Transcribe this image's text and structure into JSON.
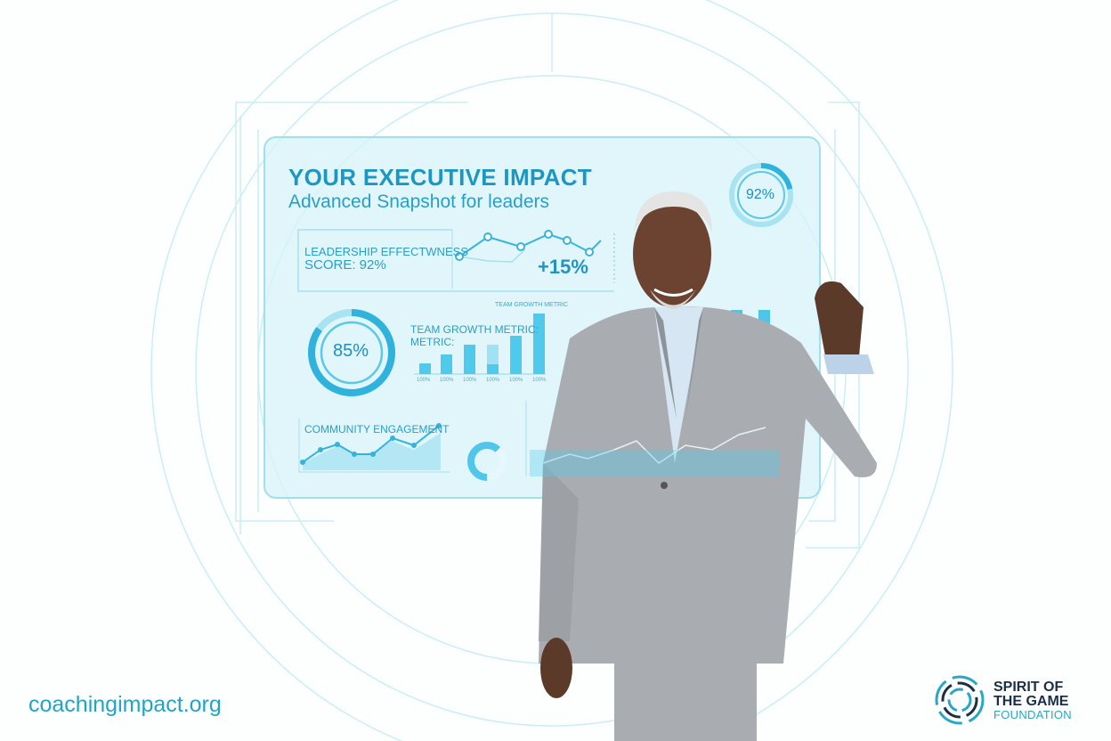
{
  "dashboard": {
    "title": "YOUR EXECUTIVE IMPACT",
    "subtitle": "Advanced Snapshot for leaders",
    "leadership_label": "LEADERSHIP EFFECTWNESS",
    "leadership_score": "SCORE: 92%",
    "trend_change": "+15%",
    "gauge_left": {
      "label": "85%",
      "value": 85
    },
    "gauge_right": {
      "label": "92%",
      "value": 92
    },
    "team_growth_title": "TEAM GROWTH METRIC:",
    "team_growth_title_2": "METRIC:",
    "team_growth_small_title": "TEAM GROWTH METRIC",
    "team_growth_ticks": [
      "100%",
      "100%",
      "100%",
      "100%",
      "100%",
      "100%"
    ],
    "community_title": "COMMUNITY ENGAGEMENT"
  },
  "footer": {
    "url": "coachingimpact.org",
    "logo_line1": "SPIRIT OF",
    "logo_line2": "THE GAME",
    "logo_line3": "FOUNDATION"
  },
  "colors": {
    "accent": "#1c97c3",
    "light": "#5fd0ec",
    "panel": "#d6f3f9",
    "suit": "#a9adb2",
    "logo_dark": "#1b2f45"
  }
}
